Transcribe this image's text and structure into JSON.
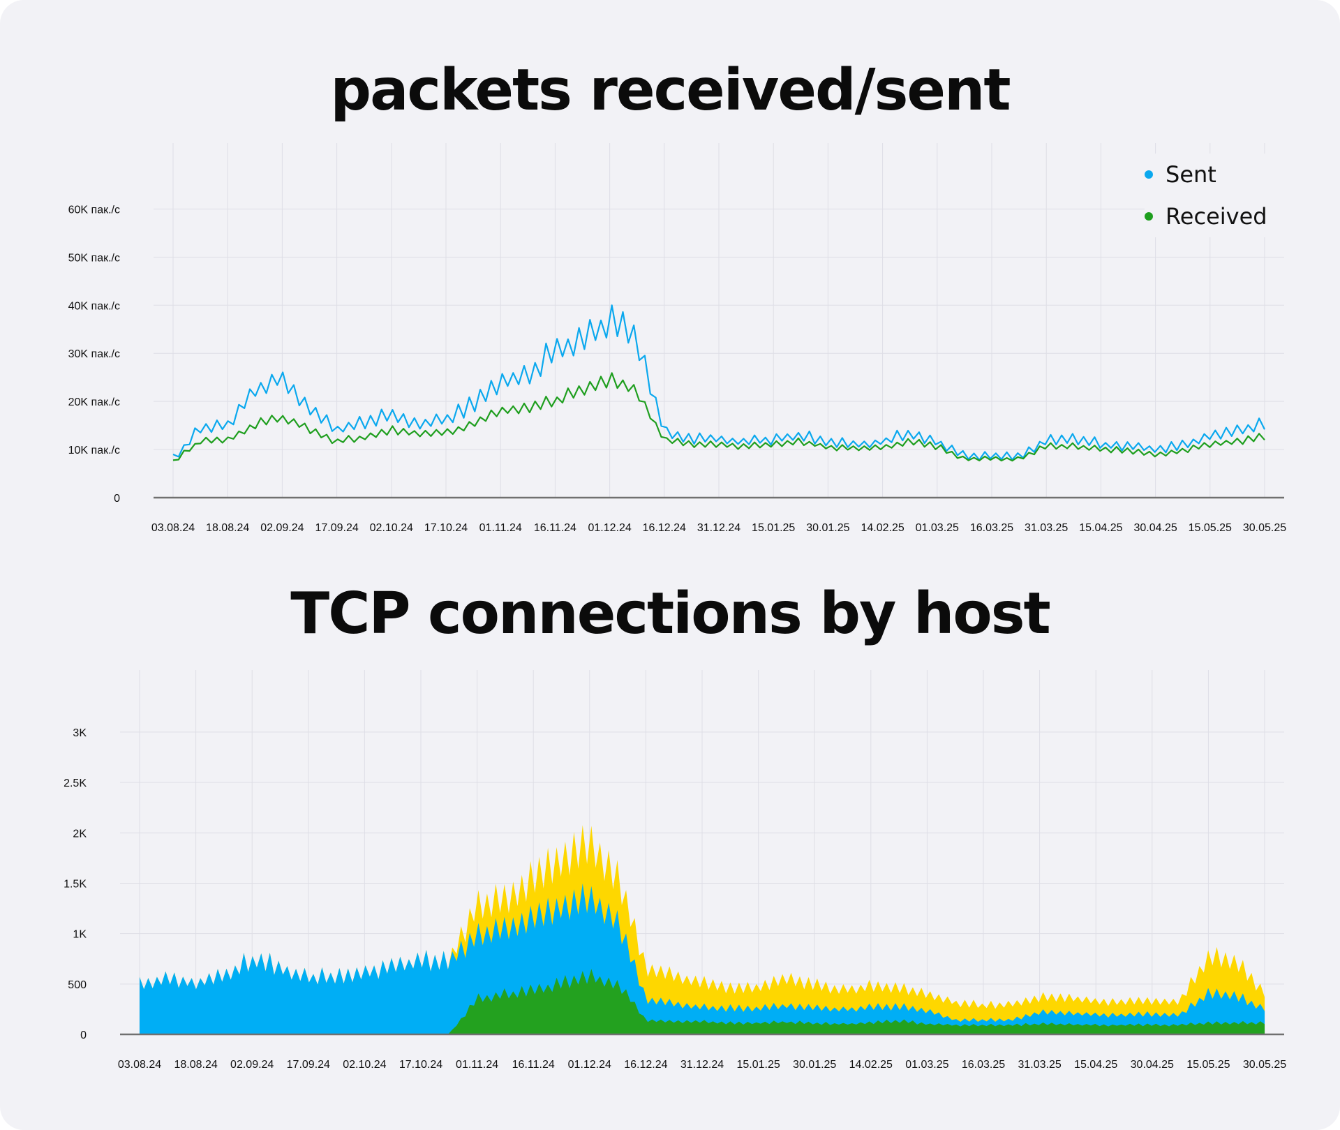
{
  "titles": {
    "chart1": "packets received/sent",
    "chart2": "TCP connections by host"
  },
  "colors": {
    "sent": "#0aa8ee",
    "received": "#1e9e1e",
    "host_green": "#23a11f",
    "host_blue": "#00aef5",
    "host_yellow": "#fed700",
    "grid": "#dedee6",
    "axis": "#707070"
  },
  "chart_data": [
    {
      "type": "line",
      "title": "packets received/sent",
      "x_labels": [
        "03.08.24",
        "18.08.24",
        "02.09.24",
        "17.09.24",
        "02.10.24",
        "17.10.24",
        "01.11.24",
        "16.11.24",
        "01.12.24",
        "16.12.24",
        "31.12.24",
        "15.01.25",
        "30.01.25",
        "14.02.25",
        "01.03.25",
        "16.03.25",
        "31.03.25",
        "15.04.25",
        "30.04.25",
        "15.05.25",
        "30.05.25"
      ],
      "y_ticks": [
        0,
        10000,
        20000,
        30000,
        40000,
        50000,
        60000
      ],
      "y_tick_labels": [
        "0",
        "10K пак./с",
        "20K пак./с",
        "30K пак./с",
        "40K пак./с",
        "50K пак./с",
        "60K пак./с"
      ],
      "ylim": [
        0,
        65000
      ],
      "legend": {
        "position": "top-right",
        "entries": [
          "Sent",
          "Received"
        ]
      },
      "x": [
        "03.08.24",
        "10.08.24",
        "18.08.24",
        "25.08.24",
        "02.09.24",
        "09.09.24",
        "17.09.24",
        "24.09.24",
        "02.10.24",
        "09.10.24",
        "17.10.24",
        "24.10.24",
        "01.11.24",
        "08.11.24",
        "16.11.24",
        "23.11.24",
        "01.12.24",
        "08.12.24",
        "16.12.24",
        "23.12.24",
        "31.12.24",
        "07.01.25",
        "15.01.25",
        "22.01.25",
        "30.01.25",
        "06.02.25",
        "14.02.25",
        "21.02.25",
        "01.03.25",
        "08.03.25",
        "16.03.25",
        "23.03.25",
        "31.03.25",
        "07.04.25",
        "15.04.25",
        "22.04.25",
        "30.04.25",
        "07.05.25",
        "15.05.25",
        "22.05.25",
        "30.05.25"
      ],
      "series": [
        {
          "name": "Sent",
          "values": [
            8000,
            14000,
            15000,
            22000,
            25000,
            18000,
            14000,
            15000,
            17000,
            15000,
            16000,
            19000,
            24000,
            25000,
            30000,
            33000,
            36000,
            32000,
            14000,
            12000,
            12000,
            11500,
            12000,
            12500,
            11500,
            11000,
            11500,
            13000,
            11500,
            8500,
            8500,
            8500,
            11500,
            12000,
            11000,
            10500,
            10000,
            10500,
            13000,
            13500,
            15000
          ]
        },
        {
          "name": "Received",
          "values": [
            7500,
            11500,
            12000,
            15000,
            16500,
            14000,
            11500,
            12500,
            14000,
            13000,
            13500,
            15000,
            18000,
            18500,
            20000,
            22000,
            24000,
            22000,
            12000,
            11000,
            11000,
            10500,
            11000,
            11500,
            10500,
            10000,
            10500,
            11500,
            10500,
            8000,
            8000,
            8000,
            10500,
            10500,
            10000,
            9500,
            9000,
            9500,
            11000,
            11500,
            12500
          ]
        }
      ]
    },
    {
      "type": "area",
      "stacked": true,
      "title": "TCP connections by host",
      "x_labels": [
        "03.08.24",
        "18.08.24",
        "02.09.24",
        "17.09.24",
        "02.10.24",
        "17.10.24",
        "01.11.24",
        "16.11.24",
        "01.12.24",
        "16.12.24",
        "31.12.24",
        "15.01.25",
        "30.01.25",
        "14.02.25",
        "01.03.25",
        "16.03.25",
        "31.03.25",
        "15.04.25",
        "30.04.25",
        "15.05.25",
        "30.05.25"
      ],
      "y_ticks": [
        0,
        500,
        1000,
        1500,
        2000,
        2500,
        3000
      ],
      "y_tick_labels": [
        "0",
        "500",
        "1K",
        "1.5K",
        "2K",
        "2.5K",
        "3K"
      ],
      "ylim": [
        0,
        3200
      ],
      "x": [
        "03.08.24",
        "10.08.24",
        "18.08.24",
        "25.08.24",
        "02.09.24",
        "09.09.24",
        "17.09.24",
        "24.09.24",
        "02.10.24",
        "09.10.24",
        "17.10.24",
        "24.10.24",
        "01.11.24",
        "08.11.24",
        "16.11.24",
        "23.11.24",
        "01.12.24",
        "08.12.24",
        "16.12.24",
        "23.12.24",
        "31.12.24",
        "07.01.25",
        "15.01.25",
        "22.01.25",
        "30.01.25",
        "06.02.25",
        "14.02.25",
        "21.02.25",
        "01.03.25",
        "08.03.25",
        "16.03.25",
        "23.03.25",
        "31.03.25",
        "07.04.25",
        "15.04.25",
        "22.04.25",
        "30.04.25",
        "07.05.25",
        "15.05.25",
        "22.05.25",
        "30.05.25"
      ],
      "series": [
        {
          "values": [
            0,
            0,
            0,
            0,
            0,
            0,
            0,
            0,
            0,
            0,
            0,
            0,
            350,
            380,
            420,
            500,
            560,
            500,
            140,
            130,
            120,
            110,
            110,
            120,
            110,
            100,
            110,
            130,
            100,
            90,
            90,
            90,
            100,
            100,
            90,
            90,
            90,
            90,
            110,
            110,
            110
          ]
        },
        {
          "values": [
            500,
            520,
            500,
            560,
            720,
            650,
            560,
            560,
            600,
            650,
            700,
            700,
            620,
            640,
            700,
            740,
            760,
            620,
            200,
            170,
            140,
            140,
            140,
            160,
            150,
            140,
            150,
            140,
            130,
            50,
            50,
            50,
            110,
            110,
            100,
            100,
            100,
            100,
            280,
            260,
            140
          ]
        },
        {
          "values": [
            0,
            0,
            0,
            0,
            0,
            0,
            0,
            0,
            0,
            0,
            0,
            0,
            300,
            280,
            380,
            460,
            520,
            430,
            300,
            270,
            240,
            200,
            200,
            260,
            220,
            190,
            200,
            180,
            160,
            170,
            140,
            150,
            140,
            150,
            130,
            130,
            130,
            130,
            350,
            330,
            150
          ]
        }
      ]
    }
  ]
}
